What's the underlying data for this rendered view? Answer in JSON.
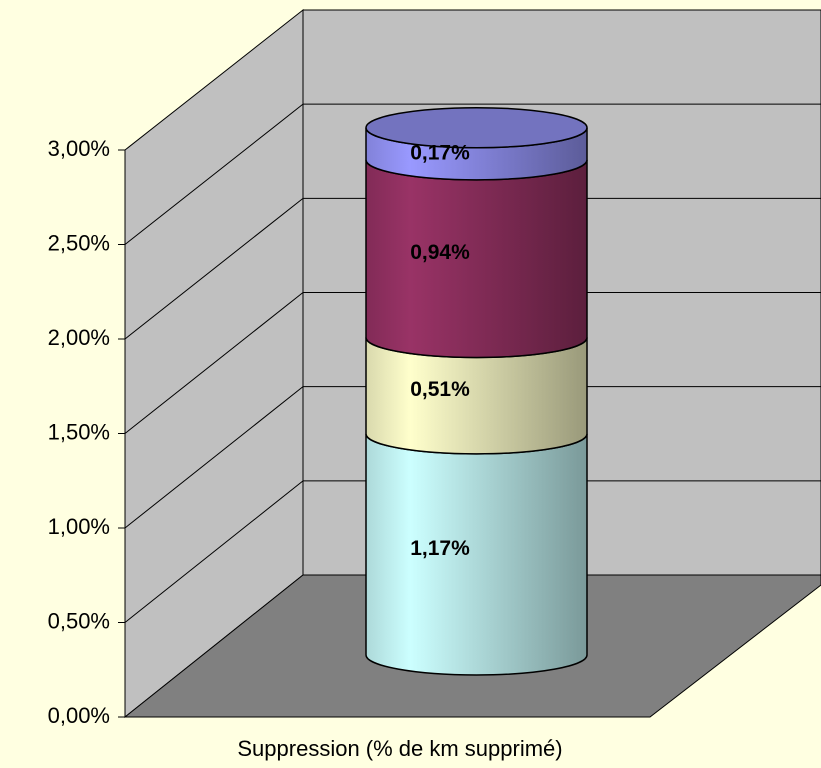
{
  "chart_data": {
    "type": "bar",
    "stacked": true,
    "three_d": true,
    "categories": [
      "Suppression (% de km supprimé)"
    ],
    "series": [
      {
        "color": "#ccffff",
        "values": [
          1.17
        ],
        "value_labels": [
          "1,17%"
        ]
      },
      {
        "color": "#ffffcc",
        "values": [
          0.51
        ],
        "value_labels": [
          "0,51%"
        ]
      },
      {
        "color": "#993366",
        "values": [
          0.94
        ],
        "value_labels": [
          "0,94%"
        ]
      },
      {
        "color": "#9999ff",
        "values": [
          0.17
        ],
        "value_labels": [
          "0,17%"
        ]
      }
    ],
    "ylim": [
      0,
      3
    ],
    "yticks": [
      {
        "value": 0,
        "label": "0,00%"
      },
      {
        "value": 0.5,
        "label": "0,50%"
      },
      {
        "value": 1,
        "label": "1,00%"
      },
      {
        "value": 1.5,
        "label": "1,50%"
      },
      {
        "value": 2,
        "label": "2,00%"
      },
      {
        "value": 2.5,
        "label": "2,50%"
      },
      {
        "value": 3,
        "label": "3,00%"
      }
    ],
    "grid": true
  }
}
